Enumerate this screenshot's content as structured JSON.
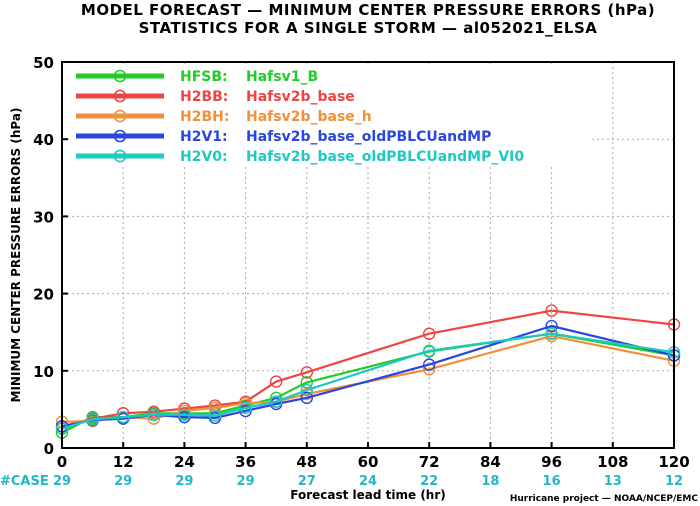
{
  "chart_data": {
    "type": "line",
    "title": "MODEL FORECAST — MINIMUM CENTER PRESSURE ERRORS (hPa)",
    "subtitle": "STATISTICS FOR A SINGLE STORM — al052021_ELSA",
    "xlabel": "Forecast lead time (hr)",
    "ylabel": "MINIMUM CENTER PRESSURE ERRORS (hPa)",
    "x_ticks": [
      0,
      12,
      24,
      36,
      48,
      60,
      72,
      84,
      96,
      108,
      120
    ],
    "y_ticks": [
      0,
      10,
      20,
      30,
      40,
      50
    ],
    "xlim": [
      0,
      120
    ],
    "ylim": [
      0,
      50
    ],
    "grid": true,
    "legend_position": "top-left",
    "case_label": "#CASE",
    "case_hours": [
      0,
      12,
      24,
      36,
      48,
      60,
      72,
      84,
      96,
      108,
      120
    ],
    "case_counts": [
      "29",
      "29",
      "29",
      "29",
      "27",
      "24",
      "22",
      "18",
      "16",
      "13",
      "12"
    ],
    "credit": "Hurricane project — NOAA/NCEP/EMC",
    "series": [
      {
        "code": "HFSB",
        "label": "Hafsv1_B",
        "color": "#22cc22",
        "x": [
          0,
          6,
          12,
          18,
          24,
          30,
          36,
          42,
          48,
          72,
          96,
          120
        ],
        "values": [
          2.0,
          4.0,
          4.0,
          4.5,
          4.5,
          4.5,
          5.5,
          6.5,
          8.5,
          12.5,
          14.8,
          12.0
        ]
      },
      {
        "code": "H2BB",
        "label": "Hafsv2b_base",
        "color": "#ee4444",
        "x": [
          0,
          6,
          12,
          18,
          24,
          30,
          36,
          42,
          48,
          72,
          96,
          120
        ],
        "values": [
          2.8,
          3.8,
          4.5,
          4.7,
          5.1,
          5.5,
          6.0,
          8.6,
          9.8,
          14.8,
          17.8,
          16.0
        ]
      },
      {
        "code": "H2BH",
        "label": "Hafsv2b_base_h",
        "color": "#f0903a",
        "x": [
          0,
          6,
          12,
          18,
          24,
          30,
          36,
          42,
          48,
          72,
          96,
          120
        ],
        "values": [
          3.4,
          3.5,
          4.0,
          3.8,
          4.8,
          5.2,
          5.8,
          6.0,
          7.0,
          10.2,
          14.5,
          11.3
        ]
      },
      {
        "code": "H2V1",
        "label": "Hafsv2b_base_oldPBLCUandMP",
        "color": "#2a45e0",
        "x": [
          0,
          6,
          12,
          18,
          24,
          30,
          36,
          42,
          48,
          72,
          96,
          120
        ],
        "values": [
          2.8,
          3.6,
          3.8,
          4.3,
          4.0,
          3.9,
          4.8,
          5.7,
          6.5,
          10.8,
          15.8,
          12.0
        ]
      },
      {
        "code": "H2V0",
        "label": "Hafsv2b_base_oldPBLCUandMP_VI0",
        "color": "#1fc8c0",
        "x": [
          0,
          6,
          12,
          18,
          24,
          30,
          36,
          42,
          48,
          72,
          96,
          120
        ],
        "values": [
          2.5,
          3.7,
          4.0,
          4.3,
          4.3,
          4.2,
          5.2,
          6.0,
          7.5,
          12.6,
          14.8,
          12.4
        ]
      }
    ]
  }
}
